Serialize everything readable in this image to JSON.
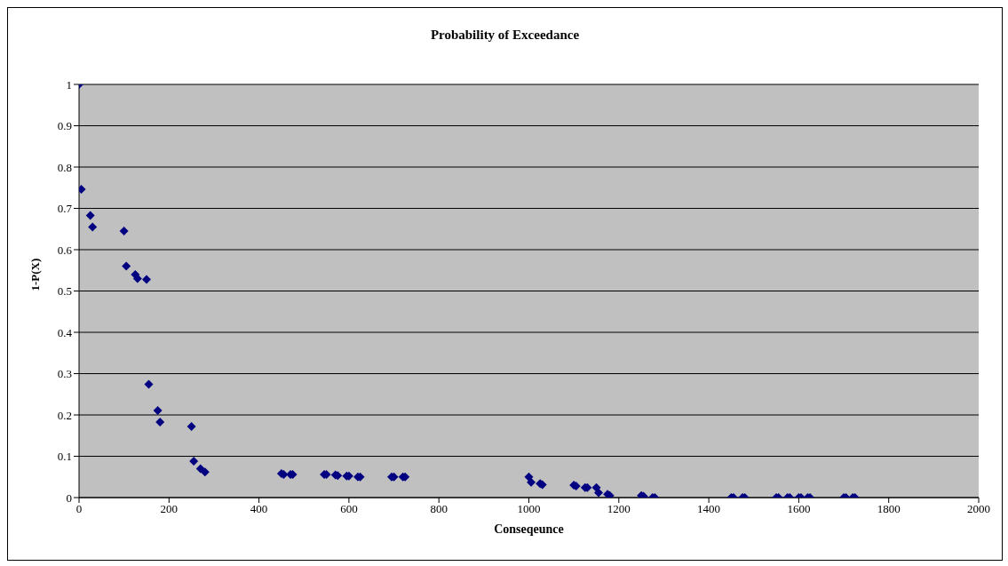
{
  "chart_data": {
    "type": "scatter",
    "title": "Probability of Exceedance",
    "xlabel": "Conseqeunce",
    "ylabel": "1-P(X)",
    "x": [
      0,
      5,
      25,
      30,
      100,
      105,
      125,
      130,
      150,
      155,
      175,
      180,
      250,
      255,
      270,
      280,
      450,
      455,
      470,
      475,
      545,
      550,
      570,
      575,
      595,
      600,
      620,
      625,
      695,
      700,
      720,
      725,
      1000,
      1005,
      1025,
      1030,
      1100,
      1105,
      1125,
      1130,
      1150,
      1155,
      1175,
      1180,
      1250,
      1255,
      1275,
      1280,
      1450,
      1455,
      1475,
      1480,
      1550,
      1555,
      1575,
      1580,
      1600,
      1605,
      1620,
      1625,
      1700,
      1705,
      1720,
      1725
    ],
    "series": [
      {
        "color": "#000080",
        "values": [
          1,
          0.746,
          0.683,
          0.655,
          0.645,
          0.56,
          0.54,
          0.53,
          0.528,
          0.274,
          0.211,
          0.183,
          0.172,
          0.088,
          0.07,
          0.062,
          0.058,
          0.056,
          0.056,
          0.056,
          0.056,
          0.056,
          0.055,
          0.053,
          0.052,
          0.052,
          0.05,
          0.05,
          0.05,
          0.05,
          0.05,
          0.05,
          0.05,
          0.037,
          0.034,
          0.031,
          0.03,
          0.028,
          0.024,
          0.024,
          0.024,
          0.012,
          0.008,
          0.005,
          0.005,
          0.003,
          0,
          0,
          0,
          0,
          0,
          0,
          0,
          0,
          0,
          0,
          0,
          0,
          0,
          0,
          0,
          0,
          0,
          0
        ]
      }
    ],
    "xlim": [
      0,
      2000
    ],
    "xticks": [
      0,
      200,
      400,
      600,
      800,
      1000,
      1200,
      1400,
      1600,
      1800,
      2000
    ],
    "ylim": [
      0,
      1
    ],
    "yticks": [
      0,
      0.1,
      0.2,
      0.3,
      0.4,
      0.5,
      0.6,
      0.7,
      0.8,
      0.9,
      1
    ],
    "grid": "y",
    "marker": "diamond",
    "legend": false
  }
}
